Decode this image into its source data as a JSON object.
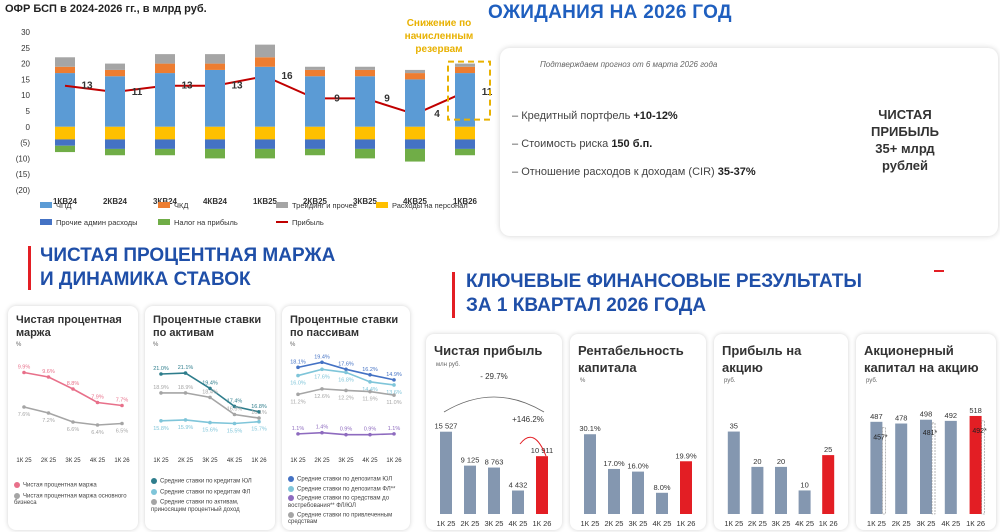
{
  "top_chart": {
    "title": "ОФР БСП в 2024-2026 гг., в млрд руб.",
    "annotation": [
      "Снижение по",
      "начисленным",
      "резервам"
    ]
  },
  "expectations": {
    "title": "ОЖИДАНИЯ НА 2026 ГОД",
    "subtitle": "Подтверждаем прогноз от 6 марта 2026 года",
    "items": [
      {
        "label": "Кредитный портфель ",
        "value": "+10-12%"
      },
      {
        "label": "Стоимость риска ",
        "value": "150 б.п."
      },
      {
        "label": "Отношение расходов к доходам (CIR) ",
        "value": "35-37%"
      }
    ],
    "profit_line1": "ЧИСТАЯ",
    "profit_line2": "ПРИБЫЛЬ",
    "profit_line3": "35+ млрд",
    "profit_line4": "рублей"
  },
  "nim_section": {
    "title_line1": "ЧИСТАЯ ПРОЦЕНТНАЯ МАРЖА",
    "title_line2": "И ДИНАМИКА СТАВОК"
  },
  "results_section": {
    "title_line1": "КЛЮЧЕВЫЕ ФИНАНСОВЫЕ РЕЗУЛЬТАТЫ",
    "title_line2": "ЗА 1 КВАРТАЛ 2026 ГОДА"
  },
  "colors": {
    "chpd": "#5b9bd5",
    "chkd": "#ed7d31",
    "trading": "#a5a5a5",
    "staff": "#ffc000",
    "admin": "#4472c4",
    "tax": "#70ad47",
    "profit": "#c00000",
    "bar_gray": "#8497b0",
    "bar_red": "#e31e24",
    "pink": "#e8708a",
    "teal": "#2e7d8c",
    "lightblue": "#7fc5d9",
    "purple": "#8e6bbf"
  },
  "chart_data": [
    {
      "type": "bar",
      "title": "ОФР БСП в 2024-2026 гг., в млрд руб.",
      "categories": [
        "1КВ24",
        "2КВ24",
        "3КВ24",
        "4КВ24",
        "1КВ25",
        "2КВ25",
        "3КВ25",
        "4КВ25",
        "1КВ26"
      ],
      "stacked": true,
      "ylim": [
        -20,
        30
      ],
      "yticks": [
        "30",
        "25",
        "20",
        "15",
        "10",
        "5",
        "0",
        "(5)",
        "(10)",
        "(15)",
        "(20)"
      ],
      "series": [
        {
          "name": "ЧПД",
          "color_key": "chpd",
          "values": [
            17,
            16,
            17,
            18,
            19,
            16,
            16,
            15,
            17
          ]
        },
        {
          "name": "ЧКД",
          "color_key": "chkd",
          "values": [
            2,
            2,
            3,
            2,
            3,
            2,
            2,
            2,
            2
          ]
        },
        {
          "name": "Трейдинг и прочее",
          "color_key": "trading",
          "values": [
            3,
            2,
            3,
            3,
            4,
            1,
            1,
            1,
            1
          ]
        },
        {
          "name": "Расходы на персонал",
          "color_key": "staff",
          "values": [
            -4,
            -4,
            -4,
            -4,
            -4,
            -4,
            -4,
            -4,
            -4
          ]
        },
        {
          "name": "Прочие админ расходы",
          "color_key": "admin",
          "values": [
            -2,
            -3,
            -3,
            -3,
            -3,
            -3,
            -3,
            -3,
            -3
          ]
        },
        {
          "name": "Налог на прибыль",
          "color_key": "tax",
          "values": [
            -2,
            -2,
            -2,
            -3,
            -3,
            -2,
            -3,
            -4,
            -2
          ]
        }
      ],
      "profit": {
        "name": "Прибыль",
        "values": [
          13,
          11,
          13,
          13,
          16,
          9,
          9,
          4,
          11
        ]
      }
    },
    {
      "type": "line",
      "title": "Чистая процентная маржа",
      "unit": "%",
      "categories": [
        "1К 25",
        "2К 25",
        "3К 25",
        "4К 25",
        "1К 26"
      ],
      "series": [
        {
          "name": "Чистая процентная маржа",
          "color_key": "pink",
          "values": [
            9.9,
            9.6,
            8.8,
            7.9,
            7.7
          ],
          "labels": [
            "9.9%",
            "9.6%",
            "8.8%",
            "7.9%",
            "7.7%"
          ]
        },
        {
          "name": "Чистая процентная маржа основного бизнеса",
          "color_key": "trading",
          "values": [
            7.6,
            7.2,
            6.6,
            6.4,
            6.5
          ],
          "labels": [
            "7.6%",
            "7.2%",
            "6.6%",
            "6.4%",
            "6.5%"
          ]
        }
      ]
    },
    {
      "type": "line",
      "title": "Процентные ставки по активам",
      "unit": "%",
      "categories": [
        "1К 25",
        "2К 25",
        "3К 25",
        "4К 25",
        "1К 26"
      ],
      "series": [
        {
          "name": "Средние ставки по кредитам ЮЛ",
          "color_key": "teal",
          "values": [
            21.0,
            21.1,
            19.4,
            17.4,
            16.8
          ],
          "labels": [
            "21.0%",
            "21.1%",
            "19.4%",
            "17.4%",
            "16.8%"
          ]
        },
        {
          "name": "Средние ставки по кредитам ФЛ",
          "color_key": "lightblue",
          "values": [
            15.8,
            15.9,
            15.6,
            15.5,
            15.7
          ],
          "labels": [
            "15.8%",
            "15.9%",
            "15.6%",
            "15.5%",
            "15.7%"
          ]
        },
        {
          "name": "Средние ставки по активам, приносящим процентный доход",
          "color_key": "trading",
          "values": [
            18.9,
            18.9,
            18.4,
            16.5,
            16.1
          ],
          "labels": [
            "18.9%",
            "18.9%",
            "18.4%",
            "16.5%",
            "16.1%"
          ]
        }
      ]
    },
    {
      "type": "line",
      "title": "Процентные ставки по пассивам",
      "unit": "%",
      "categories": [
        "1К 25",
        "2К 25",
        "3К 25",
        "4К 25",
        "1К 26"
      ],
      "series": [
        {
          "name": "Средние ставки по депозитам ЮЛ",
          "color_key": "admin",
          "values": [
            18.1,
            19.4,
            17.6,
            16.2,
            14.9
          ],
          "labels": [
            "18.1%",
            "19.4%",
            "17.6%",
            "16.2%",
            "14.9%"
          ]
        },
        {
          "name": "Средние ставки по депозитам ФЛ**",
          "color_key": "lightblue",
          "values": [
            16.0,
            17.6,
            16.8,
            14.4,
            13.6
          ],
          "labels": [
            "16.0%",
            "17.6%",
            "16.8%",
            "14.4%",
            "13.6%"
          ]
        },
        {
          "name": "Средние ставки по средствам до востребования** ФЛ/ЮЛ",
          "color_key": "purple",
          "values": [
            1.1,
            1.4,
            0.9,
            0.9,
            1.1
          ],
          "labels": [
            "1.1%",
            "1.4%",
            "0.9%",
            "0.9%",
            "1.1%"
          ]
        },
        {
          "name": "Средние ставки по привлеченным средствам",
          "color_key": "trading",
          "values": [
            11.2,
            12.6,
            12.2,
            11.9,
            11.0
          ],
          "labels": [
            "11.2%",
            "12.6%",
            "12.2%",
            "11.9%",
            "11.0%"
          ]
        }
      ]
    },
    {
      "type": "bar",
      "title": "Чистая прибыль",
      "unit": "млн руб.",
      "categories": [
        "1К 25",
        "2К 25",
        "3К 25",
        "4К 25",
        "1К 26"
      ],
      "values": [
        15527,
        9125,
        8763,
        4432,
        10911
      ],
      "labels": [
        "15 527",
        "9 125",
        "8 763",
        "4 432",
        "10 911"
      ],
      "annotations": [
        "- 29.7%",
        "+146.2%"
      ]
    },
    {
      "type": "bar",
      "title": "Рентабельность капитала",
      "unit": "%",
      "categories": [
        "1К 25",
        "2К 25",
        "3К 25",
        "4К 25",
        "1К 26"
      ],
      "values": [
        30.1,
        17.0,
        16.0,
        8.0,
        19.9
      ],
      "labels": [
        "30.1%",
        "17.0%",
        "16.0%",
        "8.0%",
        "19.9%"
      ]
    },
    {
      "type": "bar",
      "title": "Прибыль на акцию",
      "unit": "руб.",
      "categories": [
        "1К 25",
        "2К 25",
        "3К 25",
        "4К 25",
        "1К 26"
      ],
      "values": [
        35,
        20,
        20,
        10,
        25
      ],
      "labels": [
        "35",
        "20",
        "20",
        "10",
        "25"
      ]
    },
    {
      "type": "bar",
      "title": "Акционерный капитал на акцию",
      "unit": "руб.",
      "categories": [
        "1К 25",
        "2К 25",
        "3К 25",
        "4К 25",
        "1К 26"
      ],
      "values": [
        487,
        478,
        498,
        492,
        518
      ],
      "labels": [
        "487",
        "478",
        "498",
        "492",
        "518"
      ],
      "secondary_values": [
        457,
        null,
        481,
        null,
        492
      ],
      "secondary_labels": [
        "457*",
        "",
        "481*",
        "",
        "492*"
      ]
    }
  ]
}
